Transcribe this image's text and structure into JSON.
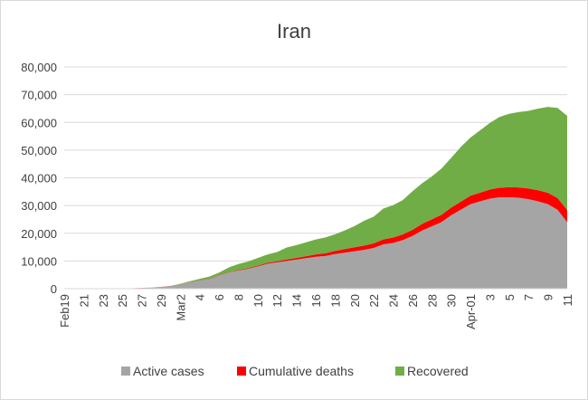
{
  "chart_data": {
    "type": "area",
    "stacked": true,
    "title": "Iran",
    "xlabel": "",
    "ylabel": "",
    "ylim": [
      0,
      80000
    ],
    "yticks": [
      "0",
      "10,000",
      "20,000",
      "30,000",
      "40,000",
      "50,000",
      "60,000",
      "70,000",
      "80,000"
    ],
    "grid": true,
    "legend_position": "bottom",
    "x": [
      "2020-02-19",
      "2020-02-20",
      "2020-02-21",
      "2020-02-22",
      "2020-02-23",
      "2020-02-24",
      "2020-02-25",
      "2020-02-26",
      "2020-02-27",
      "2020-02-28",
      "2020-02-29",
      "2020-03-01",
      "2020-03-02",
      "2020-03-03",
      "2020-03-04",
      "2020-03-05",
      "2020-03-06",
      "2020-03-07",
      "2020-03-08",
      "2020-03-09",
      "2020-03-10",
      "2020-03-11",
      "2020-03-12",
      "2020-03-13",
      "2020-03-14",
      "2020-03-15",
      "2020-03-16",
      "2020-03-17",
      "2020-03-18",
      "2020-03-19",
      "2020-03-20",
      "2020-03-21",
      "2020-03-22",
      "2020-03-23",
      "2020-03-24",
      "2020-03-25",
      "2020-03-26",
      "2020-03-27",
      "2020-03-28",
      "2020-03-29",
      "2020-03-30",
      "2020-03-31",
      "2020-04-01",
      "2020-04-02",
      "2020-04-03",
      "2020-04-04",
      "2020-04-05",
      "2020-04-06",
      "2020-04-07",
      "2020-04-08",
      "2020-04-09",
      "2020-04-10",
      "2020-04-11"
    ],
    "xtick_labels": [
      "Feb19",
      "21",
      "23",
      "25",
      "27",
      "29",
      "Mar2",
      "4",
      "6",
      "8",
      "10",
      "12",
      "14",
      "16",
      "18",
      "20",
      "22",
      "24",
      "26",
      "28",
      "30",
      "Apr-01",
      "3",
      "5",
      "7",
      "9",
      "11"
    ],
    "series": [
      {
        "name": "Active cases",
        "color": "#a5a5a5",
        "values": [
          2,
          5,
          18,
          28,
          43,
          61,
          95,
          139,
          245,
          388,
          593,
          978,
          1501,
          2336,
          2922,
          3513,
          4747,
          5823,
          6566,
          7161,
          8042,
          9000,
          9500,
          10000,
          10500,
          11000,
          11500,
          11800,
          12500,
          13000,
          13500,
          14000,
          14700,
          16000,
          16500,
          17500,
          19000,
          21000,
          22500,
          24000,
          26500,
          28500,
          30500,
          31500,
          32500,
          33000,
          33000,
          32800,
          32300,
          31500,
          30500,
          28500,
          24000
        ]
      },
      {
        "name": "Cumulative deaths",
        "color": "#ff0000",
        "values": [
          2,
          2,
          4,
          5,
          8,
          12,
          15,
          19,
          26,
          34,
          43,
          54,
          66,
          77,
          92,
          107,
          124,
          145,
          194,
          237,
          291,
          354,
          429,
          514,
          611,
          724,
          853,
          988,
          1135,
          1284,
          1433,
          1556,
          1685,
          1812,
          1934,
          2077,
          2234,
          2378,
          2517,
          2640,
          2757,
          2898,
          3036,
          3160,
          3294,
          3452,
          3603,
          3739,
          3872,
          3993,
          4110,
          4232,
          4357
        ]
      },
      {
        "name": "Recovered",
        "color": "#70ad47",
        "values": [
          0,
          0,
          0,
          0,
          0,
          0,
          0,
          0,
          0,
          0,
          0,
          0,
          175,
          291,
          552,
          739,
          913,
          1669,
          2134,
          2394,
          2731,
          2959,
          3276,
          4339,
          4590,
          4990,
          5389,
          5710,
          5979,
          6745,
          7635,
          8913,
          9625,
          11133,
          11679,
          12391,
          13911,
          14656,
          15473,
          16711,
          17935,
          19736,
          21000,
          22500,
          24000,
          25500,
          26500,
          27200,
          28000,
          29500,
          31000,
          32500,
          34000
        ]
      }
    ]
  }
}
